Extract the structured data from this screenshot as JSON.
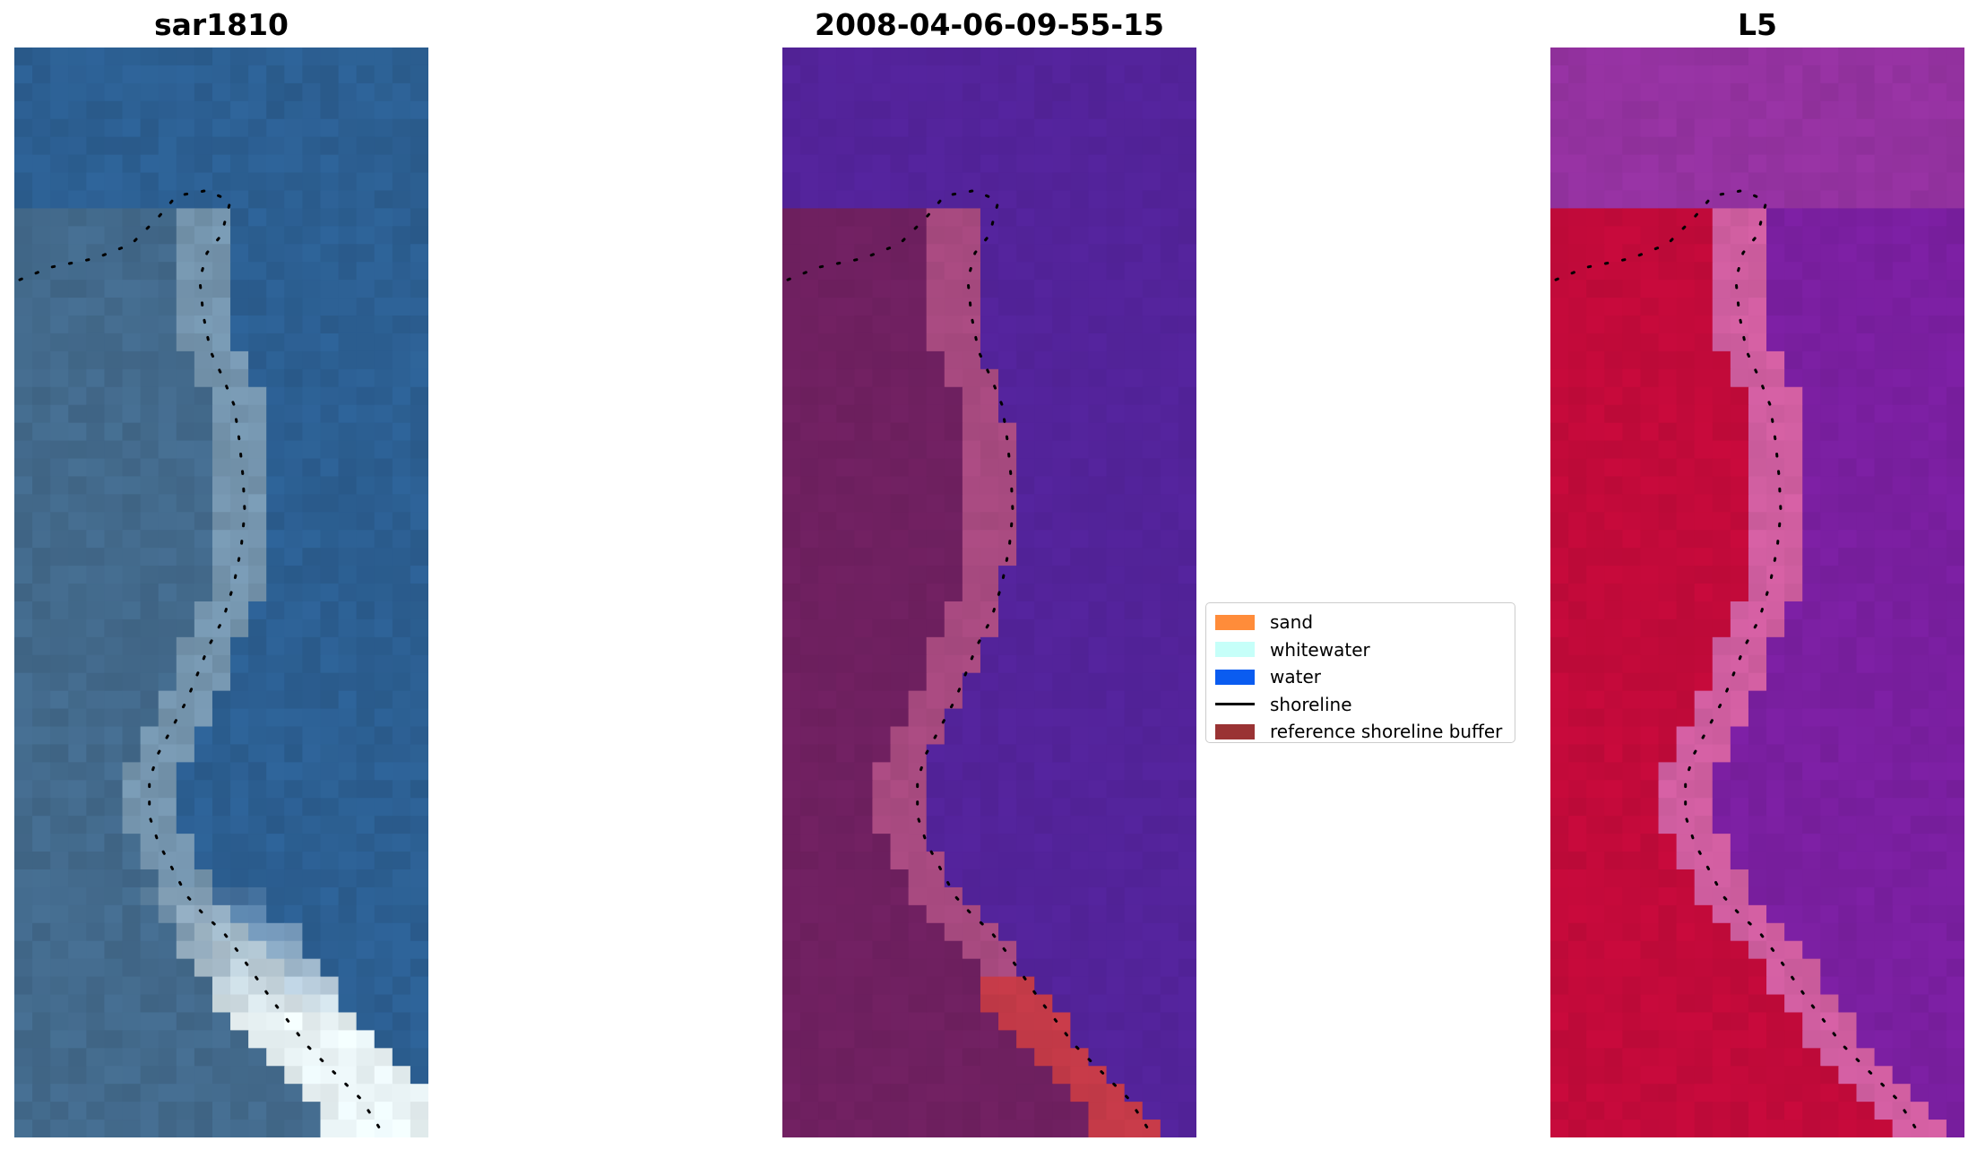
{
  "panels": [
    {
      "id": "rgb",
      "title": "sar1810",
      "palette": "rgb"
    },
    {
      "id": "classified",
      "title": "2008-04-06-09-55-15",
      "palette": "classified"
    },
    {
      "id": "index",
      "title": "L5",
      "palette": "index"
    }
  ],
  "legend": {
    "items": [
      {
        "label": "sand",
        "color": "#ff8c3a",
        "kind": "patch"
      },
      {
        "label": "whitewater",
        "color": "#c6fff9",
        "kind": "patch"
      },
      {
        "label": "water",
        "color": "#0a5cf0",
        "kind": "patch"
      },
      {
        "label": "shoreline",
        "color": "#000000",
        "kind": "line"
      },
      {
        "label": "reference shoreline buffer",
        "color": "#9a3334",
        "kind": "patch"
      }
    ]
  },
  "colors": {
    "rgb_water": "#2c5f92",
    "rgb_land": "#436a8c",
    "rgb_surf": "#e8f2f4",
    "classified_water": "#53239a",
    "classified_land": "#6f2060",
    "classified_buffer": "#a84a80",
    "classified_sand": "#c43a48",
    "index_water": "#7a1fa0",
    "index_land": "#c20a3a",
    "index_edge": "#d05ea0"
  }
}
